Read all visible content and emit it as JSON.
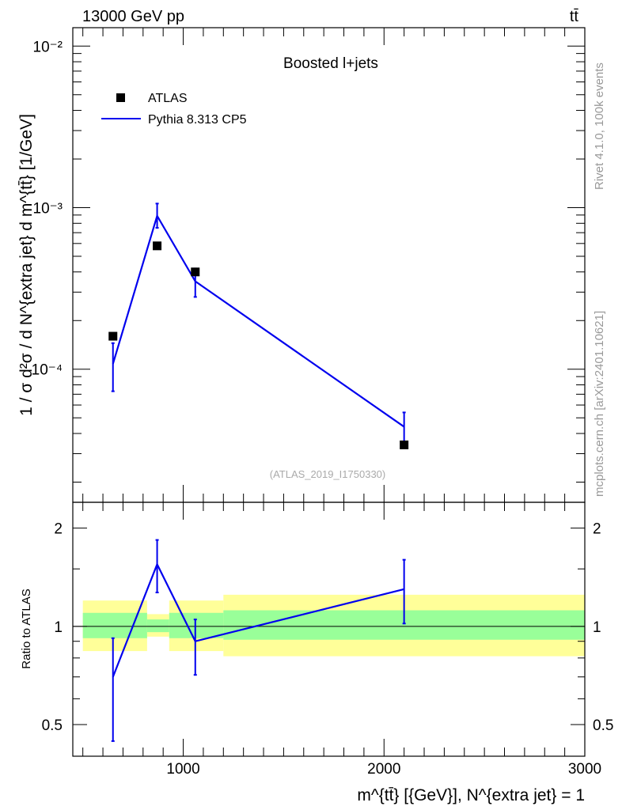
{
  "header": {
    "left": "13000 GeV pp",
    "right": "tt̄"
  },
  "side_labels": {
    "rivet": "Rivet 4.1.0,  100k events",
    "source": "mcplots.cern.ch [arXiv:2401.10621]"
  },
  "colors": {
    "data": "#000000",
    "mc": "#0000ee",
    "band_inner": "#99ff99",
    "band_outer": "#ffff99"
  },
  "chart_data": [
    {
      "type": "scatter",
      "title": "Boosted l+jets",
      "annotation": "(ATLAS_2019_I1750330)",
      "ylabel": "1 / σ d²σ / d N^{extra jet} d m^{tt̄} [1/GeV]",
      "xlim": [
        450,
        3000
      ],
      "ylim": [
        1.5e-05,
        0.013
      ],
      "yscale": "log",
      "y_tick_labels": [
        "10⁻⁴",
        "10⁻³",
        "10⁻²"
      ],
      "legend": {
        "data_label": "ATLAS",
        "mc_label": "Pythia 8.313 CP5",
        "placement": "top-left"
      },
      "series": [
        {
          "name": "ATLAS",
          "kind": "markers",
          "points": [
            {
              "x": 650,
              "y": 0.00016
            },
            {
              "x": 870,
              "y": 0.00058
            },
            {
              "x": 1060,
              "y": 0.0004
            },
            {
              "x": 2100,
              "y": 3.4e-05
            }
          ]
        },
        {
          "name": "Pythia 8.313 CP5",
          "kind": "line",
          "points": [
            {
              "x": 650,
              "y": 0.000108,
              "err_lo": 7.3e-05,
              "err_hi": 0.000145
            },
            {
              "x": 870,
              "y": 0.00089,
              "err_lo": 0.00075,
              "err_hi": 0.00106
            },
            {
              "x": 1060,
              "y": 0.00035,
              "err_lo": 0.00028,
              "err_hi": 0.00042
            },
            {
              "x": 2100,
              "y": 4.4e-05,
              "err_lo": 3.4e-05,
              "err_hi": 5.4e-05
            }
          ]
        }
      ]
    },
    {
      "type": "line",
      "ylabel": "Ratio to ATLAS",
      "xlabel": "m^{tt̄} [{GeV}], N^{extra jet} = 1",
      "xlim": [
        450,
        3000
      ],
      "ylim": [
        0.4,
        2.4
      ],
      "yscale": "log",
      "x_tick_labels": [
        "1000",
        "2000",
        "3000"
      ],
      "y_tick_labels": [
        "0.5",
        "1",
        "2"
      ],
      "reference_line": 1,
      "bands": [
        {
          "x_lo": 500,
          "x_hi": 820,
          "inner": [
            0.92,
            1.1
          ],
          "outer": [
            0.84,
            1.2
          ]
        },
        {
          "x_lo": 820,
          "x_hi": 930,
          "inner": [
            0.96,
            1.05
          ],
          "outer": [
            0.93,
            1.09
          ]
        },
        {
          "x_lo": 930,
          "x_hi": 1200,
          "inner": [
            0.92,
            1.1
          ],
          "outer": [
            0.84,
            1.2
          ]
        },
        {
          "x_lo": 1200,
          "x_hi": 3000,
          "inner": [
            0.91,
            1.12
          ],
          "outer": [
            0.81,
            1.25
          ]
        }
      ],
      "series": [
        {
          "name": "Pythia 8.313 CP5 / ATLAS",
          "points": [
            {
              "x": 650,
              "y": 0.7,
              "err_lo": 0.445,
              "err_hi": 0.92
            },
            {
              "x": 870,
              "y": 1.55,
              "err_lo": 1.27,
              "err_hi": 1.84
            },
            {
              "x": 1060,
              "y": 0.9,
              "err_lo": 0.71,
              "err_hi": 1.05
            },
            {
              "x": 2100,
              "y": 1.3,
              "err_lo": 1.02,
              "err_hi": 1.6
            }
          ]
        }
      ]
    }
  ]
}
